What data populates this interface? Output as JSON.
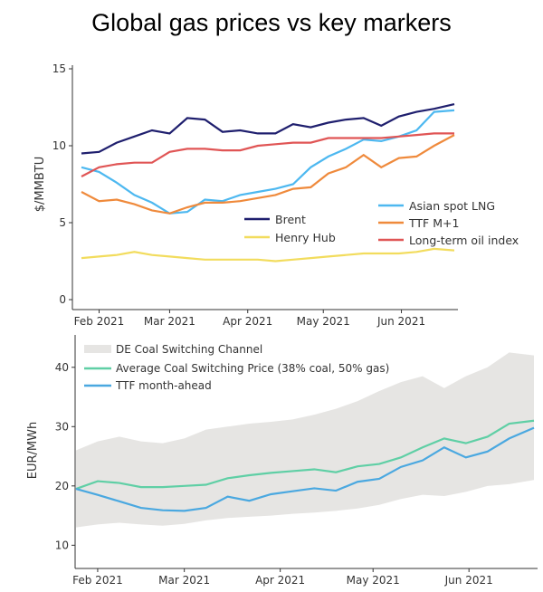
{
  "title": "Global gas prices vs key markers",
  "chart_data": [
    {
      "type": "line",
      "ylabel": "$/MMBTU",
      "ylim": [
        0,
        15
      ],
      "yticks": [
        0,
        5,
        10,
        15
      ],
      "xticks": [
        "Feb 2021",
        "Mar 2021",
        "Apr 2021",
        "May 2021",
        "Jun 2021"
      ],
      "x": [
        "2021-01-25",
        "2021-02-01",
        "2021-02-08",
        "2021-02-15",
        "2021-02-22",
        "2021-03-01",
        "2021-03-08",
        "2021-03-15",
        "2021-03-22",
        "2021-03-29",
        "2021-04-05",
        "2021-04-12",
        "2021-04-19",
        "2021-04-26",
        "2021-05-03",
        "2021-05-10",
        "2021-05-17",
        "2021-05-24",
        "2021-05-31",
        "2021-06-07",
        "2021-06-14",
        "2021-06-22"
      ],
      "series": [
        {
          "name": "Brent",
          "color": "#1f1f6e",
          "values": [
            9.5,
            9.6,
            10.2,
            10.6,
            11.0,
            10.8,
            11.8,
            11.7,
            10.9,
            11.0,
            10.8,
            10.8,
            11.4,
            11.2,
            11.5,
            11.7,
            11.8,
            11.3,
            11.9,
            12.2,
            12.4,
            12.7
          ]
        },
        {
          "name": "Henry Hub",
          "color": "#f2dc5d",
          "values": [
            2.7,
            2.8,
            2.9,
            3.1,
            2.9,
            2.8,
            2.7,
            2.6,
            2.6,
            2.6,
            2.6,
            2.5,
            2.6,
            2.7,
            2.8,
            2.9,
            3.0,
            3.0,
            3.0,
            3.1,
            3.3,
            3.2
          ]
        },
        {
          "name": "Asian spot LNG",
          "color": "#4db8f0",
          "values": [
            8.6,
            8.3,
            7.6,
            6.8,
            6.3,
            5.6,
            5.7,
            6.5,
            6.4,
            6.8,
            7.0,
            7.2,
            7.5,
            8.6,
            9.3,
            9.8,
            10.4,
            10.3,
            10.6,
            11.0,
            12.2,
            12.3
          ]
        },
        {
          "name": "TTF M+1",
          "color": "#ef8a3c",
          "values": [
            7.0,
            6.4,
            6.5,
            6.2,
            5.8,
            5.6,
            6.0,
            6.3,
            6.3,
            6.4,
            6.6,
            6.8,
            7.2,
            7.3,
            8.2,
            8.6,
            9.4,
            8.6,
            9.2,
            9.3,
            10.0,
            10.7
          ]
        },
        {
          "name": "Long-term oil index",
          "color": "#e05555",
          "values": [
            8.0,
            8.6,
            8.8,
            8.9,
            8.9,
            9.6,
            9.8,
            9.8,
            9.7,
            9.7,
            10.0,
            10.1,
            10.2,
            10.2,
            10.5,
            10.5,
            10.5,
            10.5,
            10.6,
            10.7,
            10.8,
            10.8
          ]
        }
      ]
    },
    {
      "type": "area",
      "ylabel": "EUR/MWh",
      "ylim": [
        7,
        45
      ],
      "yticks": [
        10,
        20,
        30,
        40
      ],
      "xticks": [
        "Feb 2021",
        "Mar 2021",
        "Apr 2021",
        "May 2021",
        "Jun 2021"
      ],
      "x": [
        "2021-01-25",
        "2021-02-01",
        "2021-02-08",
        "2021-02-15",
        "2021-02-22",
        "2021-03-01",
        "2021-03-08",
        "2021-03-15",
        "2021-03-22",
        "2021-03-29",
        "2021-04-05",
        "2021-04-12",
        "2021-04-19",
        "2021-04-26",
        "2021-05-03",
        "2021-05-10",
        "2021-05-17",
        "2021-05-24",
        "2021-05-31",
        "2021-06-07",
        "2021-06-14",
        "2021-06-22"
      ],
      "band": {
        "name": "DE Coal Switching Channel",
        "color": "#e6e5e3",
        "low": [
          13,
          13.5,
          13.8,
          13.5,
          13.3,
          13.6,
          14.2,
          14.6,
          14.8,
          15.0,
          15.3,
          15.5,
          15.8,
          16.2,
          16.8,
          17.8,
          18.5,
          18.3,
          19.0,
          20.0,
          20.3,
          21.0
        ],
        "high": [
          26,
          27.5,
          28.3,
          27.5,
          27.2,
          28.0,
          29.5,
          30.0,
          30.5,
          30.8,
          31.2,
          32.0,
          33.0,
          34.3,
          36.0,
          37.5,
          38.5,
          36.5,
          38.5,
          40.0,
          42.5,
          42.0
        ]
      },
      "series": [
        {
          "name": "Average Coal Switching Price (38% coal, 50% gas)",
          "color": "#5fcfa5",
          "values": [
            19.5,
            20.8,
            20.5,
            19.8,
            19.8,
            20.0,
            20.2,
            21.3,
            21.8,
            22.2,
            22.5,
            22.8,
            22.3,
            23.3,
            23.7,
            24.8,
            26.5,
            28.0,
            27.2,
            28.3,
            30.5,
            31.0
          ]
        },
        {
          "name": "TTF month-ahead",
          "color": "#4aa8e0",
          "values": [
            19.5,
            18.5,
            17.4,
            16.3,
            15.9,
            15.8,
            16.3,
            18.2,
            17.5,
            18.6,
            19.1,
            19.6,
            19.2,
            20.7,
            21.2,
            23.2,
            24.3,
            26.5,
            24.8,
            25.8,
            28.0,
            29.8
          ]
        }
      ]
    }
  ]
}
